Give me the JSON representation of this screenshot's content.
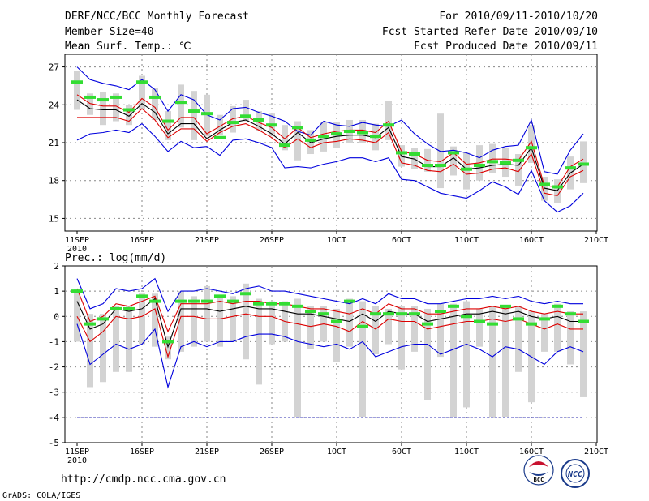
{
  "header": {
    "title": "DERF/NCC/BCC Monthly Forecast",
    "member_size": "Member Size=40",
    "variable": "Mean Surf. Temp.: ℃",
    "period": "For 2010/09/11-2010/10/20",
    "started": "Fcst Started Refer Date 2010/09/10",
    "produced": "Fcst Produced Date 2010/09/11"
  },
  "footer": {
    "url": "http://cmdp.ncc.cma.gov.cn",
    "credit": "GrADS: COLA/IGES",
    "logo_bcc": "BCC",
    "logo_ncc": "NCC"
  },
  "colors": {
    "mean": "#000000",
    "p_red": "#dd0000",
    "p_blue": "#0000dd",
    "median": "#33dd33",
    "box": "#d3d3d3",
    "grid": "#888888",
    "threshold": "#0000aa"
  },
  "chart_data": [
    {
      "type": "line",
      "title": "Mean Surf. Temp.: ℃",
      "x_labels": [
        "11SEP",
        "16SEP",
        "21SEP",
        "26SEP",
        "1OCT",
        "6OCT",
        "11OCT",
        "16OCT",
        "21OCT"
      ],
      "x_sub_label": "2010",
      "ylim": [
        14,
        28
      ],
      "y_ticks": [
        15,
        18,
        21,
        24,
        27
      ],
      "days": 40,
      "series": [
        {
          "name": "max",
          "values": [
            27.0,
            26.0,
            25.7,
            25.5,
            25.2,
            26.0,
            25.2,
            23.5,
            24.8,
            24.4,
            23.2,
            22.8,
            23.7,
            23.8,
            23.4,
            23.1,
            22.7,
            21.9,
            21.6,
            22.7,
            22.4,
            22.3,
            22.6,
            22.4,
            22.3,
            22.8,
            21.7,
            20.9,
            20.3,
            20.4,
            20.2,
            19.8,
            20.4,
            20.7,
            20.8,
            22.8,
            18.7,
            18.5,
            20.4,
            21.7
          ]
        },
        {
          "name": "upper",
          "values": [
            24.8,
            24.1,
            23.9,
            23.9,
            23.4,
            24.5,
            23.8,
            22.0,
            23.0,
            23.0,
            21.7,
            22.3,
            22.9,
            23.1,
            22.6,
            22.2,
            21.3,
            22.2,
            21.4,
            21.7,
            21.9,
            22.0,
            22.0,
            21.8,
            22.7,
            20.3,
            20.1,
            19.6,
            19.5,
            20.2,
            19.3,
            19.4,
            19.7,
            19.7,
            19.6,
            21.1,
            17.6,
            17.5,
            19.1,
            19.7
          ]
        },
        {
          "name": "mean",
          "values": [
            24.4,
            23.7,
            23.6,
            23.6,
            23.1,
            24.1,
            23.4,
            21.7,
            22.5,
            22.5,
            21.3,
            22.0,
            22.6,
            22.8,
            22.3,
            21.7,
            20.9,
            21.8,
            21.0,
            21.3,
            21.5,
            21.6,
            21.6,
            21.4,
            22.2,
            19.9,
            19.7,
            19.1,
            19.1,
            19.8,
            18.9,
            19.0,
            19.2,
            19.3,
            19.2,
            20.6,
            17.4,
            17.2,
            18.6,
            19.3
          ]
        },
        {
          "name": "lower",
          "values": [
            23.0,
            23.0,
            23.0,
            23.0,
            22.7,
            23.7,
            22.8,
            21.4,
            22.1,
            22.1,
            21.1,
            21.8,
            22.3,
            22.5,
            22.0,
            21.4,
            20.6,
            21.3,
            20.6,
            21.0,
            21.1,
            21.3,
            21.2,
            21.0,
            21.8,
            19.4,
            19.2,
            18.8,
            18.7,
            19.3,
            18.5,
            18.6,
            18.9,
            19.0,
            18.7,
            20.1,
            17.0,
            16.8,
            18.3,
            18.8
          ]
        },
        {
          "name": "min",
          "values": [
            21.2,
            21.7,
            21.8,
            22.0,
            21.8,
            22.5,
            21.5,
            20.3,
            21.1,
            20.6,
            20.7,
            20.0,
            21.2,
            21.3,
            21.0,
            20.6,
            19.0,
            19.1,
            19.0,
            19.3,
            19.5,
            19.8,
            19.8,
            19.5,
            19.8,
            18.1,
            18.0,
            17.5,
            17.0,
            16.8,
            16.6,
            17.2,
            17.9,
            17.5,
            16.9,
            18.8,
            16.4,
            15.5,
            16.0,
            17.0
          ]
        }
      ],
      "median": [
        25.8,
        24.6,
        24.4,
        24.6,
        23.6,
        25.8,
        24.6,
        22.7,
        24.2,
        23.5,
        23.3,
        21.4,
        22.6,
        23.1,
        22.8,
        22.4,
        20.8,
        22.2,
        21.2,
        21.5,
        21.7,
        21.9,
        21.8,
        21.5,
        22.4,
        20.2,
        20.1,
        19.2,
        19.2,
        20.2,
        18.9,
        19.2,
        19.5,
        19.4,
        19.6,
        20.6,
        17.7,
        17.5,
        19.0,
        19.3
      ],
      "box_low": [
        23.6,
        23.2,
        22.4,
        22.7,
        22.4,
        23.6,
        22.8,
        21.2,
        22.2,
        21.2,
        21.5,
        21.6,
        21.8,
        22.7,
        21.9,
        21.5,
        20.4,
        19.6,
        20.1,
        20.3,
        20.6,
        21.0,
        21.0,
        20.4,
        21.2,
        19.1,
        18.9,
        18.7,
        17.4,
        18.4,
        17.3,
        18.0,
        18.6,
        18.3,
        17.6,
        19.4,
        16.4,
        16.2,
        17.3,
        17.8
      ],
      "box_high": [
        26.7,
        24.9,
        25.0,
        24.9,
        24.0,
        26.3,
        25.3,
        23.5,
        25.6,
        25.1,
        24.8,
        23.2,
        23.9,
        24.4,
        23.5,
        23.3,
        22.4,
        22.7,
        22.0,
        22.6,
        22.6,
        22.8,
        22.8,
        22.5,
        24.3,
        20.8,
        20.6,
        20.5,
        23.3,
        20.7,
        20.2,
        20.8,
        20.9,
        20.6,
        20.1,
        22.4,
        18.3,
        18.1,
        19.9,
        21.1
      ]
    },
    {
      "type": "line",
      "title": "Prec.: log(mm/d)",
      "x_labels": [
        "11SEP",
        "16SEP",
        "21SEP",
        "26SEP",
        "1OCT",
        "6OCT",
        "11OCT",
        "16OCT",
        "21OCT"
      ],
      "x_sub_label": "2010",
      "ylim": [
        -5,
        2
      ],
      "y_ticks": [
        -5,
        -4,
        -3,
        -2,
        -1,
        0,
        1,
        2
      ],
      "threshold": -4,
      "days": 40,
      "series": [
        {
          "name": "max",
          "values": [
            1.5,
            0.3,
            0.5,
            1.1,
            1.0,
            1.1,
            1.5,
            0.2,
            1.0,
            1.0,
            1.1,
            1.0,
            0.9,
            1.1,
            1.2,
            1.0,
            1.0,
            0.9,
            0.8,
            0.7,
            0.6,
            0.5,
            0.7,
            0.5,
            0.9,
            0.7,
            0.7,
            0.5,
            0.5,
            0.6,
            0.7,
            0.7,
            0.8,
            0.7,
            0.8,
            0.6,
            0.5,
            0.6,
            0.5,
            0.5
          ]
        },
        {
          "name": "upper",
          "values": [
            1.1,
            -0.2,
            0.0,
            0.5,
            0.4,
            0.6,
            0.8,
            -0.6,
            0.5,
            0.5,
            0.5,
            0.6,
            0.5,
            0.6,
            0.6,
            0.5,
            0.5,
            0.4,
            0.3,
            0.3,
            0.2,
            0.1,
            0.3,
            0.1,
            0.5,
            0.3,
            0.3,
            0.1,
            0.1,
            0.2,
            0.3,
            0.3,
            0.4,
            0.3,
            0.4,
            0.2,
            0.1,
            0.2,
            0.1,
            0.1
          ]
        },
        {
          "name": "mean",
          "values": [
            0.6,
            -0.5,
            -0.3,
            0.3,
            0.2,
            0.3,
            0.7,
            -1.2,
            0.3,
            0.3,
            0.3,
            0.2,
            0.3,
            0.4,
            0.3,
            0.3,
            0.2,
            0.1,
            0.1,
            0.0,
            -0.1,
            -0.2,
            0.1,
            -0.2,
            0.2,
            0.1,
            0.1,
            -0.2,
            -0.1,
            0.0,
            0.1,
            0.1,
            0.2,
            0.1,
            0.2,
            0.0,
            -0.1,
            0.0,
            -0.2,
            -0.2
          ]
        },
        {
          "name": "lower",
          "values": [
            0.0,
            -1.0,
            -0.6,
            0.0,
            -0.1,
            0.0,
            0.3,
            -1.6,
            0.0,
            0.0,
            -0.1,
            -0.1,
            0.0,
            0.1,
            0.0,
            0.0,
            -0.2,
            -0.3,
            -0.4,
            -0.3,
            -0.4,
            -0.6,
            -0.2,
            -0.5,
            -0.1,
            -0.2,
            -0.2,
            -0.5,
            -0.4,
            -0.3,
            -0.2,
            -0.2,
            -0.1,
            -0.2,
            -0.1,
            -0.3,
            -0.5,
            -0.3,
            -0.5,
            -0.5
          ]
        },
        {
          "name": "min",
          "values": [
            -0.3,
            -1.9,
            -1.5,
            -1.1,
            -1.3,
            -1.1,
            -0.5,
            -2.8,
            -1.2,
            -1.0,
            -1.2,
            -1.0,
            -1.0,
            -0.8,
            -0.7,
            -0.7,
            -0.8,
            -1.0,
            -1.1,
            -1.2,
            -1.1,
            -1.3,
            -1.0,
            -1.6,
            -1.4,
            -1.2,
            -1.1,
            -1.1,
            -1.5,
            -1.3,
            -1.1,
            -1.3,
            -1.6,
            -1.2,
            -1.3,
            -1.6,
            -1.9,
            -1.4,
            -1.2,
            -1.4
          ]
        }
      ],
      "median": [
        1.0,
        -0.3,
        -0.1,
        0.3,
        0.3,
        0.8,
        0.6,
        -1.0,
        0.6,
        0.6,
        0.6,
        0.8,
        0.6,
        0.9,
        0.5,
        0.5,
        0.5,
        0.4,
        0.2,
        0.1,
        -0.2,
        0.6,
        -0.4,
        0.1,
        0.1,
        0.1,
        0.1,
        -0.3,
        0.2,
        0.4,
        0.0,
        -0.2,
        -0.3,
        0.4,
        -0.1,
        -0.3,
        -0.1,
        0.4,
        0.1,
        -0.2
      ],
      "box_low": [
        -1.0,
        -2.8,
        -2.6,
        -2.2,
        -2.2,
        -1.1,
        -1.2,
        -1.7,
        -1.4,
        -1.2,
        -1.0,
        -1.2,
        -1.0,
        -1.7,
        -2.7,
        -1.1,
        -1.0,
        -4.0,
        -1.3,
        -1.0,
        -1.8,
        -1.2,
        -4.0,
        -1.5,
        -1.1,
        -2.1,
        -1.4,
        -3.3,
        -1.6,
        -4.0,
        -3.6,
        -1.2,
        -4.0,
        -4.0,
        -2.2,
        -3.4,
        -1.4,
        -1.4,
        -1.9,
        -3.2
      ],
      "box_high": [
        1.1,
        0.1,
        0.1,
        0.4,
        0.4,
        0.9,
        0.9,
        -0.8,
        1.0,
        0.8,
        1.2,
        0.8,
        0.8,
        1.3,
        0.7,
        0.6,
        0.6,
        0.7,
        0.4,
        0.4,
        0.3,
        0.7,
        0.6,
        0.4,
        0.3,
        0.4,
        0.4,
        0.3,
        0.5,
        0.5,
        0.6,
        0.3,
        0.4,
        0.4,
        0.4,
        0.2,
        0.1,
        0.5,
        0.2,
        0.2
      ]
    }
  ]
}
